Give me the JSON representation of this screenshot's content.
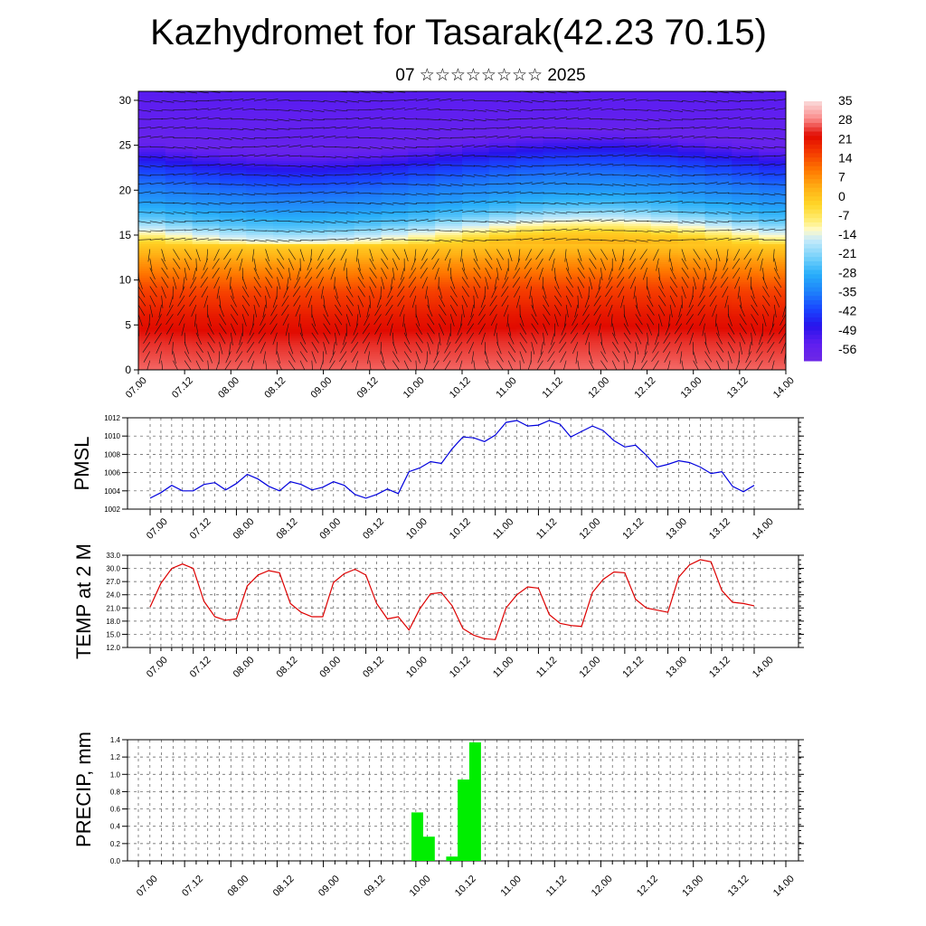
{
  "title": "Kazhydromet for Tasarak(42.23 70.15)",
  "subtitle": "07 ☆☆☆☆☆☆☆☆ 2025",
  "time_labels": [
    "07.00",
    "07.12",
    "08.00",
    "08.12",
    "09.00",
    "09.12",
    "10.00",
    "10.12",
    "11.00",
    "11.12",
    "12.00",
    "12.12",
    "13.00",
    "13.12",
    "14.00"
  ],
  "colors": {
    "pmsl": "#0000dd",
    "temp": "#dd0000",
    "precip": "#00ee00"
  },
  "chart_data": [
    {
      "type": "heatmap",
      "ylim": [
        0,
        31
      ],
      "yticks": [
        0,
        5,
        10,
        15,
        20,
        25,
        30
      ],
      "colorbar_labels": [
        "35",
        "28",
        "21",
        "14",
        "7",
        "0",
        "-7",
        "-14",
        "-21",
        "-28",
        "-35",
        "-42",
        "-49",
        "-56"
      ],
      "colorbar_range": [
        -63,
        42
      ],
      "levels_temperature": [
        [
          0,
          33
        ],
        [
          3,
          30
        ],
        [
          6,
          26
        ],
        [
          9,
          20
        ],
        [
          12,
          10
        ],
        [
          14,
          2
        ],
        [
          15.5,
          -12
        ],
        [
          17,
          -24
        ],
        [
          19,
          -32
        ],
        [
          21,
          -38
        ],
        [
          22.5,
          -44
        ],
        [
          24,
          -52
        ],
        [
          25.5,
          -60
        ],
        [
          27,
          -58
        ],
        [
          29,
          -56
        ],
        [
          31,
          -55
        ]
      ],
      "wind_barbs": true
    },
    {
      "type": "line",
      "ylabel": "PMSL",
      "ylim": [
        1002,
        1012
      ],
      "yticks": [
        1002,
        1004,
        1006,
        1008,
        1010,
        1012
      ],
      "x_step_hours": 3,
      "values": [
        1003.2,
        1003.8,
        1004.6,
        1004.0,
        1004.0,
        1004.7,
        1004.9,
        1004.1,
        1004.8,
        1005.8,
        1005.3,
        1004.5,
        1004.0,
        1005.0,
        1004.7,
        1004.1,
        1004.4,
        1005.0,
        1004.6,
        1003.6,
        1003.2,
        1003.6,
        1004.2,
        1003.7,
        1006.1,
        1006.5,
        1007.2,
        1007.0,
        1008.6,
        1009.9,
        1009.8,
        1009.4,
        1010.1,
        1011.5,
        1011.7,
        1011.1,
        1011.2,
        1011.7,
        1011.3,
        1009.9,
        1010.5,
        1011.1,
        1010.6,
        1009.5,
        1008.8,
        1009.0,
        1007.9,
        1006.6,
        1006.9,
        1007.3,
        1007.1,
        1006.6,
        1005.9,
        1006.1,
        1004.5,
        1003.9,
        1004.6
      ]
    },
    {
      "type": "line",
      "ylabel": "TEMP at 2 M",
      "ylim": [
        12,
        33
      ],
      "yticks": [
        "12.0",
        "15.0",
        "18.0",
        "21.0",
        "24.0",
        "27.0",
        "30.0",
        "33.0"
      ],
      "x_step_hours": 3,
      "values": [
        21.2,
        26.6,
        30.0,
        31.0,
        30.0,
        22.5,
        19.0,
        18.2,
        18.5,
        26.0,
        28.5,
        29.5,
        29.0,
        22.0,
        20.0,
        19.0,
        19.0,
        26.8,
        28.8,
        29.8,
        28.5,
        22.0,
        18.5,
        19.0,
        16.0,
        20.8,
        24.2,
        24.5,
        21.5,
        16.3,
        14.8,
        14.0,
        13.8,
        21.0,
        24.0,
        25.8,
        25.5,
        19.5,
        17.5,
        17.0,
        16.8,
        24.5,
        27.5,
        29.2,
        29.0,
        23.0,
        21.0,
        20.5,
        20.0,
        28.0,
        30.8,
        32.0,
        31.5,
        25.0,
        22.3,
        22.0,
        21.5
      ]
    },
    {
      "type": "bar",
      "ylabel": "PRECIP, mm",
      "ylim": [
        0,
        1.4
      ],
      "yticks": [
        "0.0",
        "0.2",
        "0.4",
        "0.6",
        "0.8",
        "1.0",
        "1.2",
        "1.4"
      ],
      "x_step_hours": 3,
      "bars": [
        {
          "index": 24,
          "value": 0.56
        },
        {
          "index": 25,
          "value": 0.28
        },
        {
          "index": 27,
          "value": 0.05
        },
        {
          "index": 28,
          "value": 0.94
        },
        {
          "index": 29,
          "value": 1.37
        }
      ]
    }
  ]
}
